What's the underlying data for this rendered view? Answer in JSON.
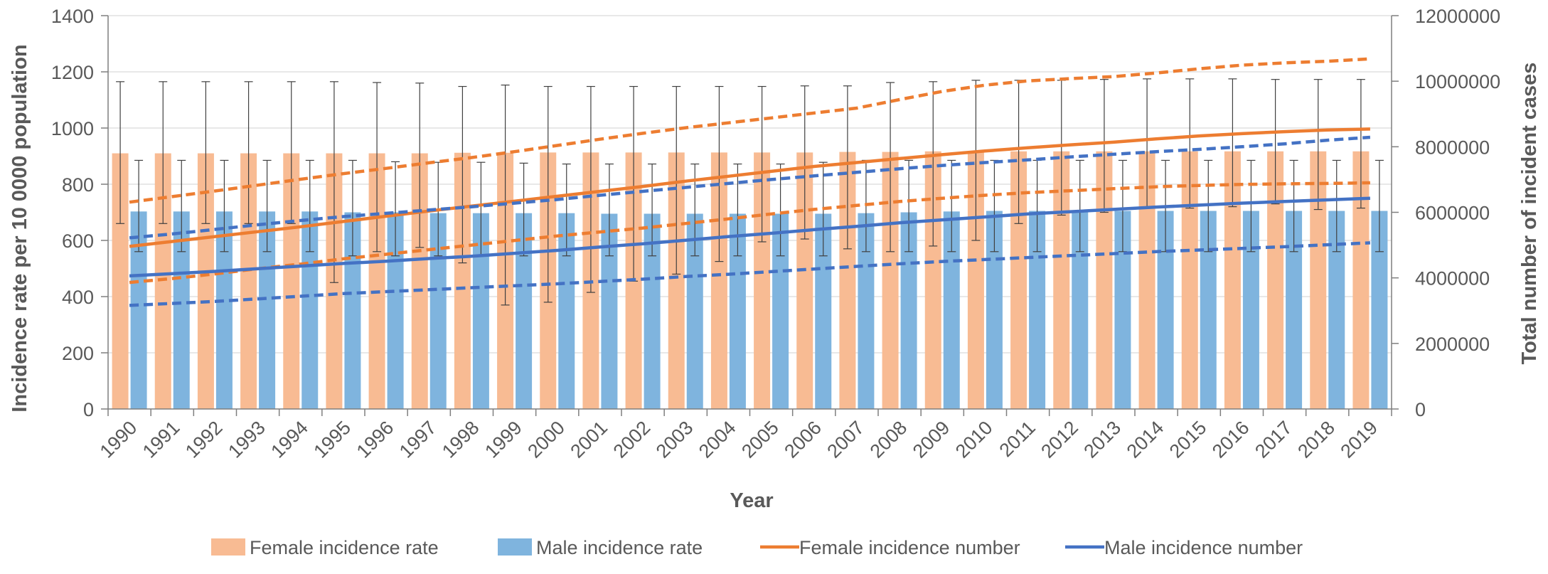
{
  "chart_data": {
    "type": "bar",
    "xlabel": "Year",
    "ylabel_left": "Incidence  rate per 10 0000 population",
    "ylabel_right": "Total number of incident cases",
    "ylim_left": [
      0,
      1400
    ],
    "yticks_left": [
      0,
      200,
      400,
      600,
      800,
      1000,
      1200,
      1400
    ],
    "ylim_right": [
      0,
      12000000
    ],
    "yticks_right": [
      0,
      2000000,
      4000000,
      6000000,
      8000000,
      10000000,
      12000000
    ],
    "grid": true,
    "legend_position": "bottom",
    "categories": [
      "1990",
      "1991",
      "1992",
      "1993",
      "1994",
      "1995",
      "1996",
      "1997",
      "1998",
      "1999",
      "2000",
      "2001",
      "2002",
      "2003",
      "2004",
      "2005",
      "2006",
      "2007",
      "2008",
      "2009",
      "2010",
      "2011",
      "2012",
      "2013",
      "2014",
      "2015",
      "2016",
      "2017",
      "2018",
      "2019"
    ],
    "series": [
      {
        "name": "Female incidence rate",
        "kind": "bar",
        "axis": "left",
        "color": "#f8bb93",
        "values": [
          910,
          910,
          910,
          910,
          910,
          910,
          910,
          910,
          912,
          912,
          913,
          913,
          913,
          913,
          913,
          913,
          913,
          915,
          915,
          917,
          917,
          917,
          917,
          917,
          917,
          917,
          917,
          917,
          917,
          917
        ],
        "error_upper": [
          1165,
          1165,
          1165,
          1165,
          1165,
          1165,
          1162,
          1160,
          1148,
          1153,
          1148,
          1148,
          1148,
          1148,
          1148,
          1148,
          1150,
          1150,
          1162,
          1165,
          1170,
          1170,
          1170,
          1173,
          1175,
          1175,
          1175,
          1173,
          1173,
          1173
        ],
        "error_lower": [
          660,
          660,
          660,
          660,
          660,
          450,
          560,
          575,
          520,
          370,
          380,
          415,
          455,
          480,
          525,
          595,
          605,
          570,
          560,
          580,
          600,
          660,
          690,
          700,
          715,
          715,
          720,
          730,
          710,
          715
        ]
      },
      {
        "name": "Male incidence rate",
        "kind": "bar",
        "axis": "left",
        "color": "#7fb4de",
        "values": [
          703,
          703,
          703,
          703,
          703,
          700,
          700,
          697,
          697,
          697,
          697,
          695,
          695,
          695,
          695,
          695,
          695,
          697,
          700,
          703,
          705,
          705,
          705,
          705,
          705,
          705,
          705,
          705,
          705,
          705
        ],
        "error_upper": [
          885,
          885,
          885,
          885,
          885,
          885,
          880,
          878,
          878,
          875,
          872,
          872,
          872,
          872,
          872,
          872,
          878,
          885,
          885,
          885,
          885,
          885,
          885,
          885,
          885,
          885,
          885,
          885,
          885,
          885
        ],
        "error_lower": [
          560,
          560,
          560,
          560,
          560,
          545,
          545,
          545,
          545,
          545,
          545,
          545,
          545,
          545,
          545,
          545,
          545,
          560,
          560,
          560,
          560,
          560,
          560,
          560,
          560,
          560,
          560,
          560,
          560,
          560
        ]
      },
      {
        "name": "Female incidence number",
        "kind": "line",
        "axis": "right",
        "color": "#ed7d31",
        "values": [
          4960000,
          5110000,
          5260000,
          5410000,
          5560000,
          5720000,
          5880000,
          6040000,
          6190000,
          6340000,
          6490000,
          6640000,
          6790000,
          6950000,
          7100000,
          7250000,
          7400000,
          7520000,
          7640000,
          7760000,
          7870000,
          7970000,
          8060000,
          8140000,
          8240000,
          8330000,
          8400000,
          8460000,
          8510000,
          8540000
        ],
        "upper": [
          6310000,
          6480000,
          6650000,
          6830000,
          7010000,
          7180000,
          7340000,
          7510000,
          7670000,
          7850000,
          8040000,
          8230000,
          8410000,
          8580000,
          8730000,
          8880000,
          9030000,
          9180000,
          9440000,
          9690000,
          9880000,
          10010000,
          10080000,
          10140000,
          10250000,
          10380000,
          10490000,
          10560000,
          10610000,
          10680000
        ],
        "lower": [
          3860000,
          3980000,
          4120000,
          4280000,
          4420000,
          4580000,
          4720000,
          4860000,
          5000000,
          5140000,
          5280000,
          5400000,
          5520000,
          5660000,
          5800000,
          5950000,
          6090000,
          6210000,
          6330000,
          6430000,
          6520000,
          6600000,
          6660000,
          6720000,
          6780000,
          6820000,
          6850000,
          6870000,
          6880000,
          6900000
        ]
      },
      {
        "name": "Male incidence number",
        "kind": "line",
        "axis": "right",
        "color": "#4472c4",
        "values": [
          4060000,
          4130000,
          4200000,
          4280000,
          4360000,
          4440000,
          4510000,
          4590000,
          4660000,
          4750000,
          4840000,
          4940000,
          5040000,
          5150000,
          5260000,
          5360000,
          5470000,
          5570000,
          5680000,
          5770000,
          5860000,
          5950000,
          6020000,
          6090000,
          6160000,
          6220000,
          6280000,
          6330000,
          6380000,
          6430000
        ],
        "upper": [
          5220000,
          5340000,
          5480000,
          5620000,
          5750000,
          5870000,
          5970000,
          6070000,
          6170000,
          6280000,
          6390000,
          6520000,
          6640000,
          6760000,
          6880000,
          7000000,
          7110000,
          7220000,
          7330000,
          7430000,
          7520000,
          7600000,
          7690000,
          7770000,
          7850000,
          7920000,
          8000000,
          8090000,
          8200000,
          8290000
        ],
        "lower": [
          3160000,
          3220000,
          3280000,
          3360000,
          3440000,
          3520000,
          3580000,
          3640000,
          3700000,
          3760000,
          3820000,
          3890000,
          3960000,
          4040000,
          4110000,
          4190000,
          4270000,
          4350000,
          4430000,
          4500000,
          4560000,
          4620000,
          4680000,
          4740000,
          4800000,
          4850000,
          4900000,
          4950000,
          5010000,
          5070000
        ]
      }
    ]
  }
}
